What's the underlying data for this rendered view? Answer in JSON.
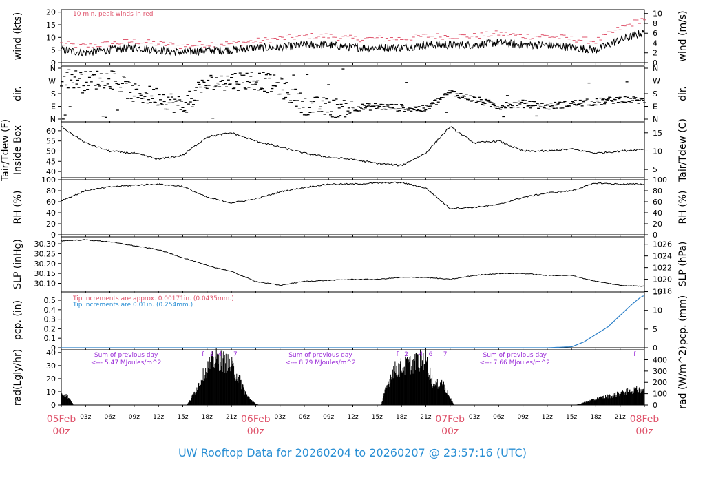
{
  "title": "UW Rooftop Data for 20260204  to  20260207 @ 23:57:16  (UTC)",
  "colors": {
    "date_label": "#df536b",
    "title": "#2a8fd4",
    "gust": "#df536b",
    "pcp_note_red": "#df536b",
    "pcp_note_blue": "#2a8fd4",
    "pcp_line": "#2a7fc8",
    "sum_note": "#9a2bd8",
    "line": "#000000"
  },
  "x_axis": {
    "hours_total": 72,
    "hour_ticks": [
      {
        "h": 0,
        "label": ""
      },
      {
        "h": 3,
        "label": "03z"
      },
      {
        "h": 6,
        "label": "06z"
      },
      {
        "h": 9,
        "label": "09z"
      },
      {
        "h": 12,
        "label": "12z"
      },
      {
        "h": 15,
        "label": "15z"
      },
      {
        "h": 18,
        "label": "18z"
      },
      {
        "h": 21,
        "label": "21z"
      },
      {
        "h": 24,
        "label": ""
      },
      {
        "h": 27,
        "label": "03z"
      },
      {
        "h": 30,
        "label": "06z"
      },
      {
        "h": 33,
        "label": "09z"
      },
      {
        "h": 36,
        "label": "12z"
      },
      {
        "h": 39,
        "label": "15z"
      },
      {
        "h": 42,
        "label": "18z"
      },
      {
        "h": 45,
        "label": "21z"
      },
      {
        "h": 48,
        "label": ""
      },
      {
        "h": 51,
        "label": "03z"
      },
      {
        "h": 54,
        "label": "06z"
      },
      {
        "h": 57,
        "label": "09z"
      },
      {
        "h": 60,
        "label": "12z"
      },
      {
        "h": 63,
        "label": "15z"
      },
      {
        "h": 66,
        "label": "18z"
      },
      {
        "h": 69,
        "label": "21z"
      },
      {
        "h": 72,
        "label": ""
      }
    ],
    "day_labels": [
      {
        "h": 0,
        "date": "05Feb",
        "time": "00z"
      },
      {
        "h": 24,
        "date": "06Feb",
        "time": "00z"
      },
      {
        "h": 48,
        "date": "07Feb",
        "time": "00z"
      },
      {
        "h": 72,
        "date": "08Feb",
        "time": "00z"
      }
    ]
  },
  "chart_data": [
    {
      "type": "line",
      "id": "wind",
      "ylabel": "wind (kts)",
      "ylabel_right": "wind (m/s)",
      "ylim": [
        0,
        21
      ],
      "ticks": [
        0,
        5,
        10,
        15,
        20
      ],
      "right_ticks": [
        0,
        2,
        4,
        6,
        8,
        10
      ],
      "right_factor": 1.9438,
      "annotation": "10 min. peak winds in red",
      "x": [
        0,
        3,
        6,
        9,
        12,
        15,
        18,
        21,
        24,
        27,
        30,
        33,
        36,
        39,
        42,
        45,
        48,
        51,
        54,
        57,
        60,
        63,
        66,
        69,
        72
      ],
      "series": [
        {
          "values": [
            5,
            4,
            5,
            6,
            5,
            4,
            5,
            5,
            6,
            6,
            7,
            7,
            6,
            6,
            6,
            7,
            7,
            7,
            8,
            7,
            7,
            6,
            5,
            9,
            12
          ]
        },
        {
          "values": [
            7,
            6,
            7,
            8,
            7,
            6,
            7,
            7,
            8,
            9,
            10,
            10,
            9,
            9,
            9,
            10,
            10,
            10,
            11,
            10,
            10,
            9,
            8,
            13,
            17
          ]
        }
      ]
    },
    {
      "type": "scatter",
      "id": "dir",
      "ylabel": "dir.",
      "ylabel_right": "dir.",
      "tick_labels": [
        "N",
        "W",
        "S",
        "E",
        "N"
      ],
      "x": [
        0,
        3,
        6,
        9,
        12,
        15,
        18,
        21,
        24,
        27,
        30,
        33,
        36,
        39,
        42,
        45,
        48,
        51,
        54,
        57,
        60,
        63,
        66,
        69,
        72
      ],
      "values": [
        300,
        270,
        290,
        180,
        160,
        90,
        250,
        270,
        280,
        230,
        100,
        80,
        80,
        90,
        80,
        70,
        190,
        140,
        90,
        110,
        90,
        110,
        120,
        140,
        130
      ]
    },
    {
      "type": "line",
      "id": "temp",
      "ylabel": "Tair/Tdew (F)",
      "ylabel2": "Inside Box",
      "ylabel_right": "Tair/Tdew (C)",
      "ylim": [
        37,
        64
      ],
      "ticks": [
        40,
        45,
        50,
        55,
        60
      ],
      "right_ticks": [
        5,
        10,
        15
      ],
      "x": [
        0,
        3,
        6,
        9,
        12,
        15,
        18,
        21,
        24,
        27,
        30,
        33,
        36,
        39,
        42,
        45,
        48,
        51,
        54,
        57,
        60,
        63,
        66,
        69,
        72
      ],
      "values": [
        62,
        54,
        50,
        49,
        46,
        48,
        57,
        59,
        55,
        52,
        49,
        47,
        46,
        44,
        43,
        49,
        62,
        54,
        55,
        50,
        50,
        51,
        49,
        50,
        51
      ]
    },
    {
      "type": "line",
      "id": "rh",
      "ylabel": "RH (%)",
      "ylabel_right": "RH (%)",
      "ylim": [
        0,
        100
      ],
      "ticks": [
        0,
        20,
        40,
        60,
        80,
        100
      ],
      "x": [
        0,
        3,
        6,
        9,
        12,
        15,
        18,
        21,
        24,
        27,
        30,
        33,
        36,
        39,
        42,
        45,
        48,
        51,
        54,
        57,
        60,
        63,
        66,
        69,
        72
      ],
      "values": [
        62,
        80,
        87,
        90,
        92,
        88,
        68,
        58,
        65,
        78,
        86,
        92,
        92,
        94,
        95,
        85,
        48,
        50,
        55,
        68,
        76,
        80,
        94,
        92,
        92
      ]
    },
    {
      "type": "line",
      "id": "slp",
      "ylabel": "SLP (inHg)",
      "ylabel_right": "SLP (hPa)",
      "ylim": [
        30.06,
        30.335
      ],
      "ticks": [
        30.1,
        30.15,
        30.2,
        30.25,
        30.3
      ],
      "tick_labels": [
        "30.10",
        "30.15",
        "30.20",
        "30.25",
        "30.30"
      ],
      "right_ticks": [
        1018,
        1020,
        1022,
        1024,
        1026
      ],
      "x": [
        0,
        3,
        6,
        9,
        12,
        15,
        18,
        21,
        24,
        27,
        30,
        33,
        36,
        39,
        42,
        45,
        48,
        51,
        54,
        57,
        60,
        63,
        66,
        69,
        72
      ],
      "values": [
        30.315,
        30.32,
        30.31,
        30.29,
        30.27,
        30.23,
        30.19,
        30.16,
        30.11,
        30.09,
        30.11,
        30.115,
        30.12,
        30.12,
        30.13,
        30.13,
        30.12,
        30.14,
        30.15,
        30.15,
        30.14,
        30.14,
        30.11,
        30.09,
        30.085
      ]
    },
    {
      "type": "area",
      "id": "pcp",
      "ylabel": "pcp. (in)",
      "ylabel_right": "pcp. (mm)",
      "ylim": [
        0,
        0.58
      ],
      "ticks": [
        0,
        0.1,
        0.2,
        0.3,
        0.4,
        0.5
      ],
      "tick_labels": [
        "0",
        "0.1",
        "0.2",
        "0.3",
        "0.4",
        "0.5"
      ],
      "right_ticks": [
        0,
        5,
        10,
        15
      ],
      "notes": [
        "Tip increments are approx. 0.00171in. (0.0435mm.)",
        "Tip increments are 0.01in. (0.254mm.)"
      ],
      "x": [
        0,
        60,
        63,
        64.5,
        66,
        67.5,
        69,
        70.5,
        71.5,
        72
      ],
      "values": [
        0,
        0,
        0.01,
        0.06,
        0.14,
        0.22,
        0.34,
        0.46,
        0.53,
        0.55
      ]
    },
    {
      "type": "area",
      "id": "rad",
      "ylabel": "rad(Lgly/hr)",
      "ylabel_right": "rad (W/m^2)",
      "ylim": [
        0,
        42
      ],
      "ticks": [
        0,
        10,
        20,
        30,
        40
      ],
      "right_ticks": [
        0,
        100,
        200,
        300,
        400
      ],
      "x": [
        0,
        0.5,
        1,
        1.5,
        15.5,
        16,
        17,
        18,
        19,
        20,
        21,
        22,
        23,
        24,
        24.5,
        39.5,
        40,
        41,
        42,
        43,
        44,
        45,
        46,
        47,
        48,
        48.5,
        63.5,
        64,
        65,
        66,
        67,
        68,
        69,
        70,
        71,
        72
      ],
      "values": [
        11,
        9,
        6,
        0,
        0,
        5,
        18,
        32,
        40,
        38,
        34,
        22,
        7,
        1,
        0,
        0,
        12,
        30,
        33,
        35,
        38,
        40,
        16,
        20,
        6,
        0,
        0,
        1,
        3,
        5,
        7,
        8,
        10,
        12,
        13,
        14
      ],
      "sum_notes": [
        {
          "h": 8,
          "line1": "Sum of previous day",
          "line2": "<--- 5.47 MJoules/m^2"
        },
        {
          "h": 32,
          "line1": "Sum of previous day",
          "line2": "<--- 8.79 MJoules/m^2"
        },
        {
          "h": 56,
          "line1": "Sum of previous day",
          "line2": "<--- 7.66 MJoules/m^2"
        }
      ],
      "hour_marks": [
        {
          "h": 17.5,
          "label": "f"
        },
        {
          "h": 18.6,
          "label": "1"
        },
        {
          "h": 19.6,
          "label": "4"
        },
        {
          "h": 21.5,
          "label": "7"
        },
        {
          "h": 41.5,
          "label": "f"
        },
        {
          "h": 42.6,
          "label": "2"
        },
        {
          "h": 44.4,
          "label": "4"
        },
        {
          "h": 45.6,
          "label": "6"
        },
        {
          "h": 47.4,
          "label": "7"
        },
        {
          "h": 70.8,
          "label": "f"
        }
      ]
    }
  ]
}
